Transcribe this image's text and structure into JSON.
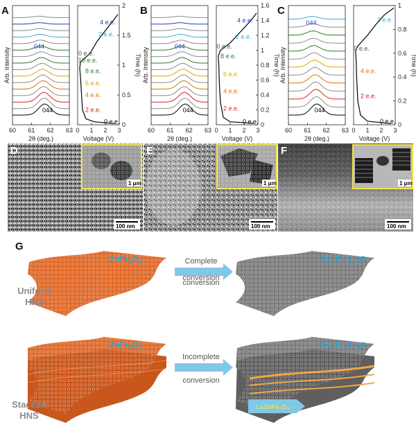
{
  "panels": {
    "A": "A",
    "B": "B",
    "C": "C",
    "D": "D",
    "E": "E",
    "F": "F",
    "G": "G"
  },
  "axes": {
    "xrd_ylabel": "Arb. Intensity",
    "xrd_xlabel": "2θ (deg.)",
    "volt_xlabel": "Voltage (V)",
    "time_ylabel": "Time (h)",
    "peak_top": "044",
    "peak_bottom": "044"
  },
  "chart_data": [
    {
      "panel": "A",
      "type": "line",
      "xrd": {
        "xlim": [
          60,
          63
        ],
        "xticks": [
          "60",
          "61",
          "62",
          "63"
        ],
        "peak_2theta": 61.7,
        "n_traces": 16
      },
      "time_voltage": {
        "xlim": [
          0,
          3
        ],
        "ylim": [
          0,
          2
        ],
        "xticks": [
          "0",
          "1",
          "2",
          "3"
        ],
        "yticks": [
          "0",
          "0.5",
          "1",
          "1.5",
          "2"
        ],
        "curve": [
          [
            2.7,
            0.02
          ],
          [
            1.2,
            0.05
          ],
          [
            0.6,
            0.1
          ],
          [
            0.35,
            0.25
          ],
          [
            0.28,
            0.5
          ],
          [
            0.22,
            0.75
          ],
          [
            0.15,
            0.95
          ],
          [
            0.2,
            1.05
          ],
          [
            0.9,
            1.2
          ],
          [
            1.4,
            1.4
          ],
          [
            1.9,
            1.55
          ],
          [
            2.4,
            1.7
          ],
          [
            2.9,
            1.85
          ]
        ],
        "labels": [
          {
            "text": "4 e.e.",
            "color": "#1f3fbf",
            "v": 1.6,
            "t": 1.72
          },
          {
            "text": "2 e.e.",
            "color": "#3aa8d8",
            "v": 1.5,
            "t": 1.52
          },
          {
            "text": "0 e.e.",
            "color": "#555555",
            "v": 0.05,
            "t": 1.2
          },
          {
            "text": "10 e.e.",
            "color": "#2a7a2a",
            "v": 0.05,
            "t": 1.08
          },
          {
            "text": "8 e.e.",
            "color": "#2a7a2a",
            "v": 0.55,
            "t": 0.9
          },
          {
            "text": "6 e.e.",
            "color": "#e6a100",
            "v": 0.55,
            "t": 0.7
          },
          {
            "text": "4 e.e.",
            "color": "#e07000",
            "v": 0.55,
            "t": 0.5
          },
          {
            "text": "2 e.e.",
            "color": "#d82020",
            "v": 0.55,
            "t": 0.25
          },
          {
            "text": "0 e.e.",
            "color": "#000000",
            "v": 1.9,
            "t": 0.05
          }
        ]
      }
    },
    {
      "panel": "B",
      "type": "line",
      "xrd": {
        "xlim": [
          60,
          63
        ],
        "xticks": [
          "60",
          "61",
          "62",
          "63"
        ],
        "peak_2theta": 61.8,
        "n_traces": 16
      },
      "time_voltage": {
        "xlim": [
          0,
          3
        ],
        "ylim": [
          0,
          1.6
        ],
        "xticks": [
          "0",
          "1",
          "2",
          "3"
        ],
        "yticks": [
          "0",
          "0.2",
          "0.4",
          "0.6",
          "0.8",
          "1",
          "1.2",
          "1.4",
          "1.6"
        ],
        "curve": [
          [
            2.7,
            0.02
          ],
          [
            1.0,
            0.04
          ],
          [
            0.5,
            0.1
          ],
          [
            0.3,
            0.3
          ],
          [
            0.22,
            0.55
          ],
          [
            0.18,
            0.8
          ],
          [
            0.14,
            0.92
          ],
          [
            0.3,
            1.0
          ],
          [
            1.0,
            1.1
          ],
          [
            1.5,
            1.2
          ],
          [
            2.0,
            1.3
          ],
          [
            2.5,
            1.4
          ],
          [
            2.9,
            1.5
          ]
        ],
        "labels": [
          {
            "text": "4 e.e.",
            "color": "#1f3fbf",
            "v": 1.5,
            "t": 1.4
          },
          {
            "text": "2 e.e.",
            "color": "#3aa8d8",
            "v": 1.4,
            "t": 1.18
          },
          {
            "text": "0 e.e.",
            "color": "#555555",
            "v": 0.02,
            "t": 1.05
          },
          {
            "text": "8 e.e.",
            "color": "#2a7a2a",
            "v": 0.3,
            "t": 0.92
          },
          {
            "text": "6 e.e.",
            "color": "#e6a100",
            "v": 0.5,
            "t": 0.68
          },
          {
            "text": "4 e.e.",
            "color": "#e07000",
            "v": 0.5,
            "t": 0.45
          },
          {
            "text": "2 e.e.",
            "color": "#d82020",
            "v": 0.5,
            "t": 0.22
          },
          {
            "text": "0 e.e.",
            "color": "#000000",
            "v": 1.9,
            "t": 0.04
          }
        ]
      }
    },
    {
      "panel": "C",
      "type": "line",
      "xrd": {
        "xlim": [
          60,
          63
        ],
        "xticks": [
          "60",
          "61",
          "62",
          "63"
        ],
        "peak_2theta": 61.5,
        "n_traces": 13
      },
      "time_voltage": {
        "xlim": [
          0,
          3
        ],
        "ylim": [
          0,
          1
        ],
        "xticks": [
          "0",
          "1",
          "2",
          "3"
        ],
        "yticks": [
          "0",
          "0.2",
          "0.4",
          "0.6",
          "0.8",
          "1"
        ],
        "curve": [
          [
            2.7,
            0.01
          ],
          [
            1.0,
            0.03
          ],
          [
            0.5,
            0.08
          ],
          [
            0.3,
            0.2
          ],
          [
            0.22,
            0.4
          ],
          [
            0.18,
            0.55
          ],
          [
            0.14,
            0.62
          ],
          [
            0.3,
            0.66
          ],
          [
            1.0,
            0.75
          ],
          [
            1.6,
            0.84
          ],
          [
            2.2,
            0.92
          ],
          [
            2.9,
            0.98
          ]
        ],
        "labels": [
          {
            "text": "2 e.e.",
            "color": "#3aa8d8",
            "v": 1.7,
            "t": 0.88
          },
          {
            "text": "0 e.e.",
            "color": "#555555",
            "v": 0.02,
            "t": 0.64
          },
          {
            "text": "4 e.e.",
            "color": "#e07000",
            "v": 0.5,
            "t": 0.45
          },
          {
            "text": "2 e.e.",
            "color": "#d82020",
            "v": 0.5,
            "t": 0.24
          },
          {
            "text": "0 e.e.",
            "color": "#000000",
            "v": 1.9,
            "t": 0.03
          }
        ]
      }
    }
  ],
  "tem": {
    "scale_main": "100 nm",
    "scale_inset": "1 μm"
  },
  "schematic": {
    "zfo_label": "ZnFe",
    "zfo_sub1": "2",
    "zfo_o": "O",
    "zfo_sub2": "4",
    "product_label": "Zn, Fe, Li",
    "product_li_sub": "2",
    "product_o": "O",
    "uniform_line1": "Uniform",
    "uniform_line2": "HNS",
    "stacked_line1": "Stacked",
    "stacked_line2": "HNS",
    "complete_line1": "Complete",
    "complete_line2": "conversion",
    "incomplete_line1": "Incomplete",
    "incomplete_line2": "conversion",
    "lizfo_label": "LiₓZnFe₂O₄"
  },
  "colors": {
    "orange": "#e06a2a",
    "gray": "#7c7c7c",
    "arrow": "#7fc8e6",
    "label_blue": "#2aa6dc",
    "inset_border": "#f2e24a"
  }
}
